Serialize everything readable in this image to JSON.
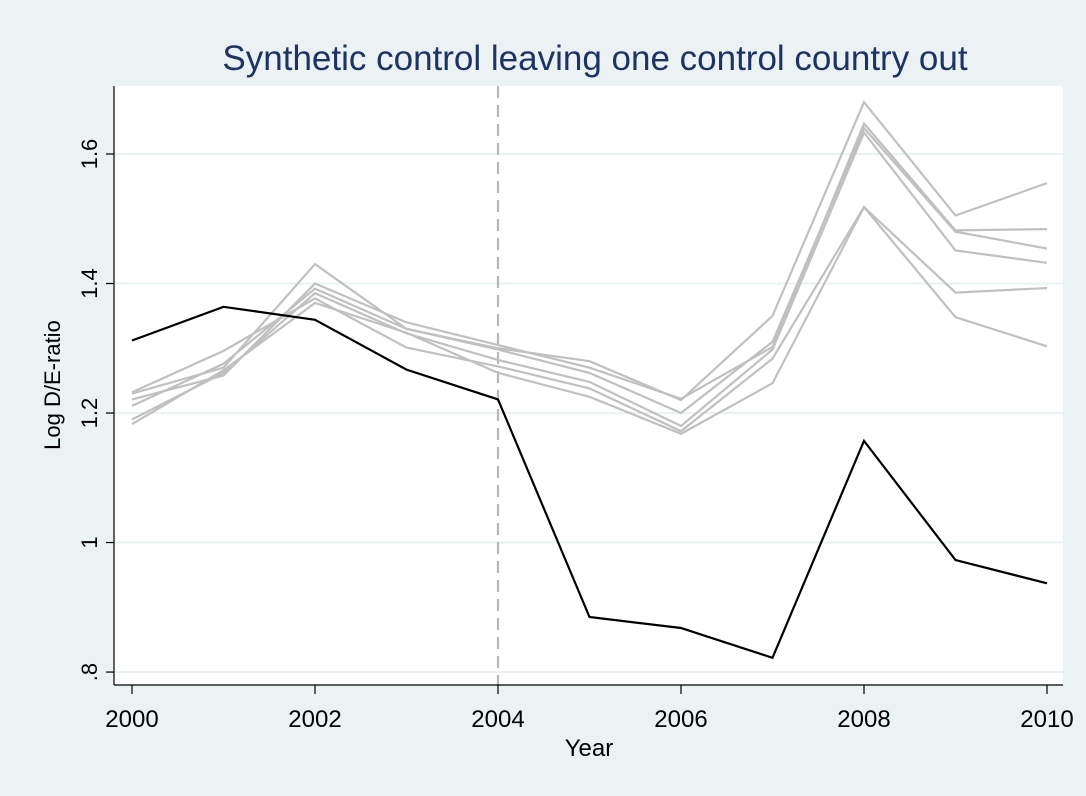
{
  "chart_data": {
    "type": "line",
    "title": "Synthetic control leaving one control country out",
    "xlabel": "Year",
    "ylabel": "Log D/E-ratio",
    "x": [
      2000,
      2001,
      2002,
      2003,
      2004,
      2005,
      2006,
      2007,
      2008,
      2009,
      2010
    ],
    "xticks": [
      2000,
      2002,
      2004,
      2006,
      2008,
      2010
    ],
    "xtick_labels": [
      "2000",
      "2002",
      "2004",
      "2006",
      "2008",
      "2010"
    ],
    "yticks": [
      0.8,
      1.0,
      1.2,
      1.4,
      1.6
    ],
    "ytick_labels": [
      ".8",
      "1",
      "1.2",
      "1.4",
      "1.6"
    ],
    "xlim": [
      2000,
      2010
    ],
    "ylim": [
      0.78,
      1.705
    ],
    "grid": true,
    "reference_line": {
      "x": 2004,
      "style": "dashed",
      "color": "#b8b8b8"
    },
    "series": [
      {
        "role": "treated",
        "color": "#000000",
        "values": [
          1.312,
          1.364,
          1.344,
          1.267,
          1.221,
          0.885,
          0.868,
          0.822,
          1.157,
          0.973,
          0.937
        ]
      },
      {
        "role": "control",
        "color": "#c0c0c0",
        "values": [
          1.23,
          1.27,
          1.43,
          1.33,
          1.3,
          1.28,
          1.22,
          1.35,
          1.68,
          1.505,
          1.555
        ]
      },
      {
        "role": "control",
        "color": "#c0c0c0",
        "values": [
          1.221,
          1.258,
          1.4,
          1.34,
          1.305,
          1.27,
          1.222,
          1.302,
          1.647,
          1.482,
          1.484
        ]
      },
      {
        "role": "control",
        "color": "#c0c0c0",
        "values": [
          1.211,
          1.276,
          1.392,
          1.33,
          1.298,
          1.262,
          1.2,
          1.31,
          1.64,
          1.48,
          1.454
        ]
      },
      {
        "role": "control",
        "color": "#c0c0c0",
        "values": [
          1.19,
          1.262,
          1.385,
          1.323,
          1.282,
          1.248,
          1.18,
          1.298,
          1.633,
          1.451,
          1.432
        ]
      },
      {
        "role": "control",
        "color": "#c0c0c0",
        "values": [
          1.232,
          1.296,
          1.377,
          1.301,
          1.272,
          1.238,
          1.172,
          1.284,
          1.518,
          1.386,
          1.393
        ]
      },
      {
        "role": "control",
        "color": "#c0c0c0",
        "values": [
          1.183,
          1.266,
          1.37,
          1.324,
          1.262,
          1.225,
          1.168,
          1.246,
          1.518,
          1.348,
          1.303
        ]
      }
    ]
  },
  "colors": {
    "background": "#eaf2f3",
    "plot_area": "#ffffff",
    "gridline": "#eaf2f3",
    "title": "#1e3264",
    "text": "#000000"
  }
}
